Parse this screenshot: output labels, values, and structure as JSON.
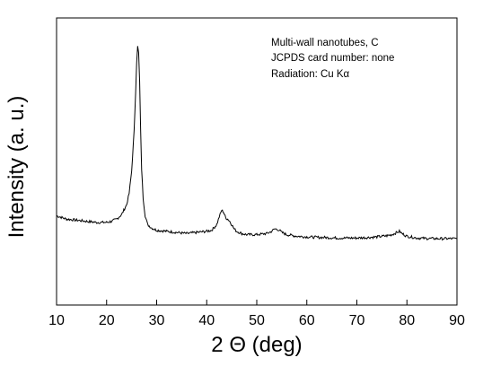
{
  "chart_data": {
    "type": "line",
    "xlabel": "2 Θ (deg)",
    "ylabel": "Intensity (a. u.)",
    "xlim": [
      10,
      90
    ],
    "x_ticks": [
      10,
      20,
      30,
      40,
      50,
      60,
      70,
      80,
      90
    ],
    "y_ticks_shown": false,
    "grid": false,
    "annotations": [
      "Multi-wall nanotubes, C",
      "JCPDS card number: none",
      "Radiation: Cu Kα"
    ],
    "series": [
      {
        "color": "#000000",
        "x": [
          10,
          12,
          14,
          16,
          18,
          20,
          21,
          22,
          23,
          24,
          24.5,
          25,
          25.5,
          25.8,
          26.0,
          26.2,
          26.4,
          26.6,
          26.8,
          27.0,
          27.3,
          27.7,
          28.2,
          29,
          30,
          32,
          34,
          36,
          38,
          40,
          41,
          42,
          42.5,
          43.0,
          43.4,
          43.8,
          44.2,
          44.6,
          45,
          45.5,
          46,
          47,
          48,
          50,
          52,
          53,
          53.5,
          54,
          54.5,
          55,
          56,
          58,
          60,
          62,
          64,
          66,
          68,
          70,
          72,
          74,
          76,
          77,
          78,
          78.5,
          79,
          80,
          82,
          84,
          86,
          88,
          90
        ],
        "y": [
          0.24,
          0.225,
          0.22,
          0.215,
          0.21,
          0.21,
          0.215,
          0.225,
          0.245,
          0.29,
          0.34,
          0.44,
          0.62,
          0.8,
          0.93,
          1.0,
          0.97,
          0.84,
          0.62,
          0.45,
          0.32,
          0.24,
          0.2,
          0.185,
          0.175,
          0.17,
          0.165,
          0.16,
          0.165,
          0.17,
          0.175,
          0.2,
          0.235,
          0.265,
          0.255,
          0.23,
          0.225,
          0.215,
          0.2,
          0.18,
          0.17,
          0.16,
          0.155,
          0.155,
          0.16,
          0.17,
          0.18,
          0.18,
          0.175,
          0.165,
          0.155,
          0.148,
          0.145,
          0.143,
          0.142,
          0.14,
          0.14,
          0.14,
          0.142,
          0.145,
          0.15,
          0.155,
          0.165,
          0.17,
          0.16,
          0.148,
          0.14,
          0.138,
          0.137,
          0.137,
          0.137
        ]
      }
    ]
  }
}
